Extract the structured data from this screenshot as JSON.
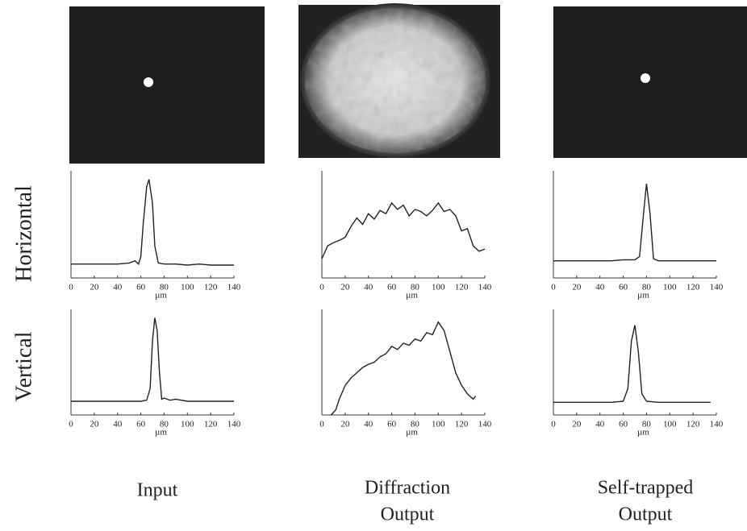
{
  "chart_data": [
    {
      "type": "line",
      "xlabel": "µm",
      "color": "#222222",
      "xlim": [
        0,
        140
      ],
      "ylim": [
        0,
        100
      ],
      "xticks": [
        0,
        20,
        40,
        60,
        80,
        100,
        120,
        140
      ],
      "x": [
        0,
        10,
        20,
        30,
        40,
        50,
        55,
        58,
        60,
        62,
        65,
        67,
        70,
        72,
        75,
        80,
        90,
        100,
        110,
        120,
        130,
        140
      ],
      "values": [
        13,
        13,
        13,
        13,
        13,
        14,
        16,
        13,
        20,
        50,
        85,
        92,
        70,
        30,
        14,
        13,
        13,
        12,
        13,
        12,
        12,
        12
      ]
    },
    {
      "type": "line",
      "xlabel": "µm",
      "color": "#222222",
      "xlim": [
        0,
        140
      ],
      "ylim": [
        0,
        100
      ],
      "xticks": [
        0,
        20,
        40,
        60,
        80,
        100,
        120,
        140
      ],
      "x": [
        0,
        5,
        10,
        15,
        20,
        25,
        30,
        35,
        40,
        45,
        50,
        55,
        60,
        65,
        70,
        75,
        80,
        85,
        90,
        95,
        100,
        105,
        110,
        115,
        120,
        125,
        130,
        135,
        140
      ],
      "values": [
        18,
        30,
        33,
        35,
        38,
        48,
        56,
        50,
        60,
        55,
        63,
        60,
        70,
        64,
        68,
        58,
        64,
        62,
        58,
        63,
        70,
        62,
        64,
        58,
        44,
        46,
        30,
        25,
        27
      ]
    },
    {
      "type": "line",
      "xlabel": "µm",
      "color": "#222222",
      "xlim": [
        0,
        140
      ],
      "ylim": [
        0,
        100
      ],
      "xticks": [
        0,
        20,
        40,
        60,
        80,
        100,
        120,
        140
      ],
      "x": [
        0,
        10,
        20,
        30,
        40,
        50,
        60,
        70,
        74,
        77,
        80,
        83,
        86,
        90,
        100,
        110,
        120,
        130,
        140
      ],
      "values": [
        16,
        16,
        16,
        16,
        16,
        16,
        17,
        17,
        20,
        55,
        88,
        60,
        18,
        16,
        16,
        16,
        16,
        16,
        16
      ]
    },
    {
      "type": "line",
      "xlabel": "µm",
      "color": "#222222",
      "xlim": [
        0,
        140
      ],
      "ylim": [
        0,
        100
      ],
      "xticks": [
        0,
        20,
        40,
        60,
        80,
        100,
        120,
        140
      ],
      "x": [
        0,
        10,
        20,
        30,
        40,
        50,
        60,
        65,
        68,
        70,
        72,
        74,
        76,
        78,
        80,
        85,
        90,
        100,
        110,
        120,
        130,
        140
      ],
      "values": [
        13,
        13,
        13,
        13,
        13,
        13,
        13,
        14,
        25,
        70,
        92,
        80,
        40,
        15,
        16,
        14,
        15,
        13,
        13,
        13,
        13,
        13
      ]
    },
    {
      "type": "line",
      "xlabel": "µm",
      "color": "#222222",
      "xlim": [
        0,
        140
      ],
      "ylim": [
        0,
        100
      ],
      "xticks": [
        0,
        20,
        40,
        60,
        80,
        100,
        120,
        140
      ],
      "x": [
        8,
        12,
        15,
        20,
        25,
        30,
        35,
        40,
        45,
        50,
        55,
        60,
        65,
        70,
        75,
        80,
        85,
        90,
        95,
        100,
        105,
        110,
        115,
        120,
        125,
        130,
        132
      ],
      "values": [
        0,
        5,
        15,
        28,
        35,
        40,
        45,
        48,
        50,
        55,
        58,
        65,
        62,
        68,
        66,
        72,
        70,
        78,
        76,
        88,
        80,
        60,
        40,
        28,
        20,
        15,
        18
      ]
    },
    {
      "type": "line",
      "xlabel": "µm",
      "color": "#222222",
      "xlim": [
        0,
        140
      ],
      "ylim": [
        0,
        100
      ],
      "xticks": [
        0,
        20,
        40,
        60,
        80,
        100,
        120,
        140
      ],
      "x": [
        0,
        10,
        20,
        30,
        40,
        50,
        60,
        64,
        67,
        70,
        73,
        76,
        80,
        90,
        100,
        110,
        120,
        135
      ],
      "values": [
        12,
        12,
        12,
        12,
        12,
        12,
        13,
        25,
        70,
        85,
        60,
        20,
        13,
        12,
        12,
        12,
        12,
        12
      ]
    }
  ],
  "row_labels": [
    "Horizontal",
    "Vertical"
  ],
  "column_labels": [
    [
      "Input"
    ],
    [
      "Diffraction",
      "Output"
    ],
    [
      "Self-trapped",
      "Output"
    ]
  ]
}
